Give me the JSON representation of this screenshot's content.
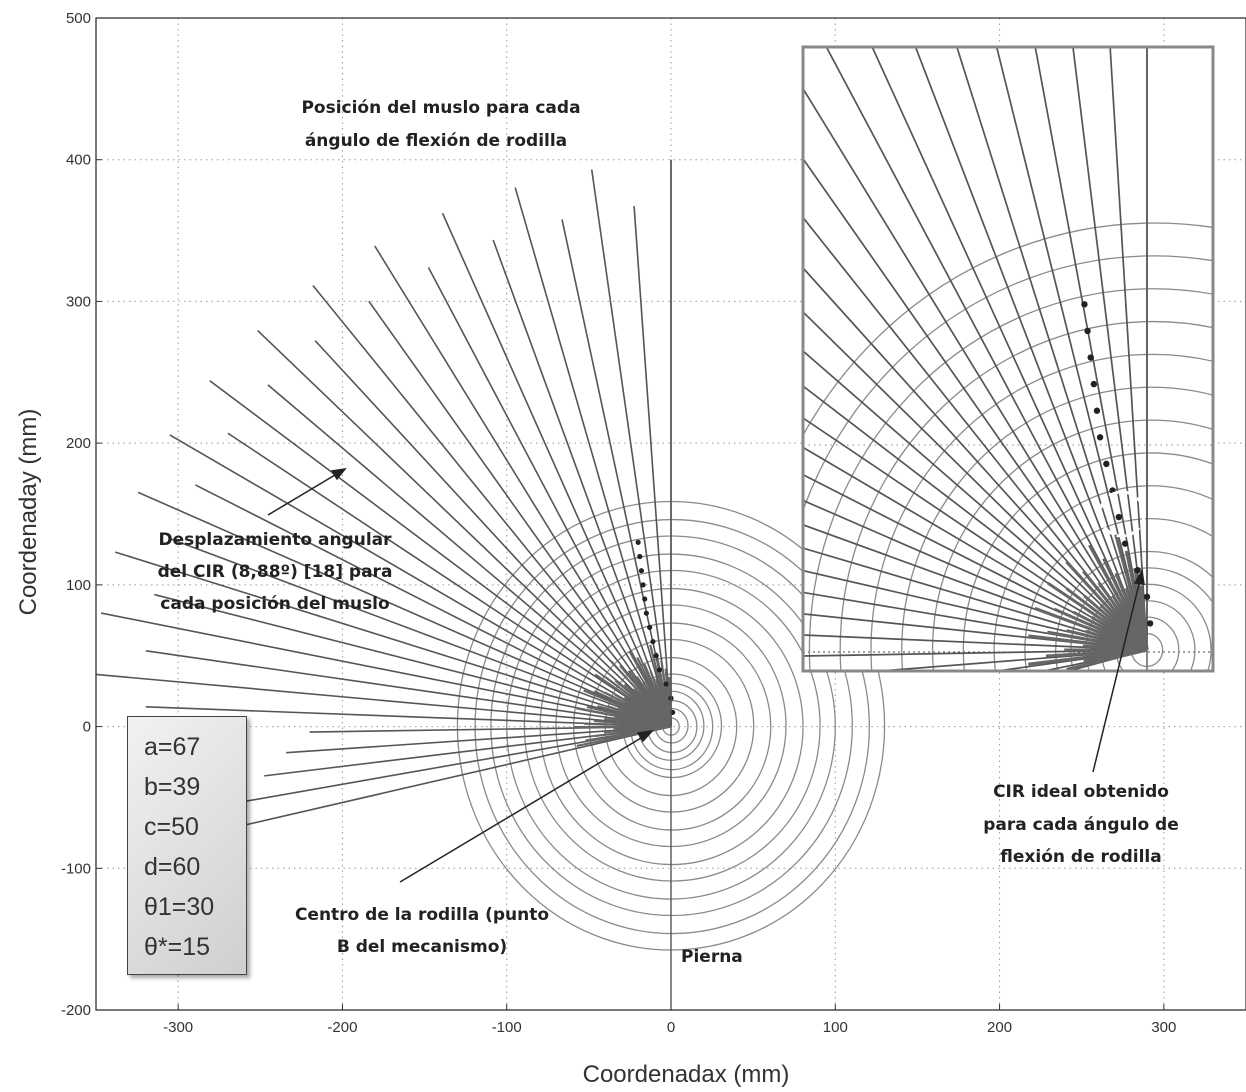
{
  "chart_data": {
    "type": "line",
    "xlabel": "Coordenadax (mm)",
    "ylabel": "Coordenaday (mm)",
    "xlim": [
      -350,
      350
    ],
    "ylim": [
      -200,
      500
    ],
    "x_ticks": [
      "-300",
      "-200",
      "-100",
      "0",
      "100",
      "200",
      "300"
    ],
    "y_ticks": [
      "-200",
      "-100",
      "0",
      "100",
      "200",
      "300",
      "400",
      "500"
    ],
    "grid": "dotted",
    "thigh_lines": {
      "count": 31,
      "length_mm": 400,
      "angle_start_deg": 90,
      "angle_step_deg": 3.5,
      "secondary_length_mm": 280
    },
    "circles": {
      "center": [
        0,
        0
      ],
      "radii_mm": [
        5,
        10,
        15,
        20,
        25,
        30,
        40,
        50,
        60,
        70,
        80,
        90,
        100,
        110,
        120,
        130
      ],
      "y_scale": 1.05
    },
    "cir_points": [
      [
        -20,
        130
      ],
      [
        -19,
        120
      ],
      [
        -18,
        110
      ],
      [
        -17,
        100
      ],
      [
        -16,
        90
      ],
      [
        -15,
        80
      ],
      [
        -13,
        70
      ],
      [
        -11,
        60
      ],
      [
        -9,
        50
      ],
      [
        -7,
        40
      ],
      [
        -3,
        30
      ],
      [
        0,
        20
      ],
      [
        1,
        10
      ]
    ],
    "pierna_line_x": 0,
    "annotations": {
      "thigh": [
        "Posición del muslo para cada",
        "ángulo de flexión de rodilla"
      ],
      "cir_disp": [
        "Desplazamiento angular",
        "del CIR (8,88º) [18] para",
        "cada posición del muslo"
      ],
      "cir_ideal": [
        "CIR ideal obtenido",
        "para cada ángulo de",
        "flexión de rodilla"
      ],
      "center": [
        "Centro de la rodilla  (punto",
        "B del mecanismo)"
      ],
      "pierna": "Pierna"
    },
    "parameters": [
      "a=67",
      "b=39",
      "c=50",
      "d=60",
      "θ1=30",
      "θ*=15"
    ],
    "inset": "zoom-of-origin-region",
    "colors": {
      "lines": "#555555",
      "circles": "#8a8a8a",
      "axes": "#333333"
    }
  }
}
